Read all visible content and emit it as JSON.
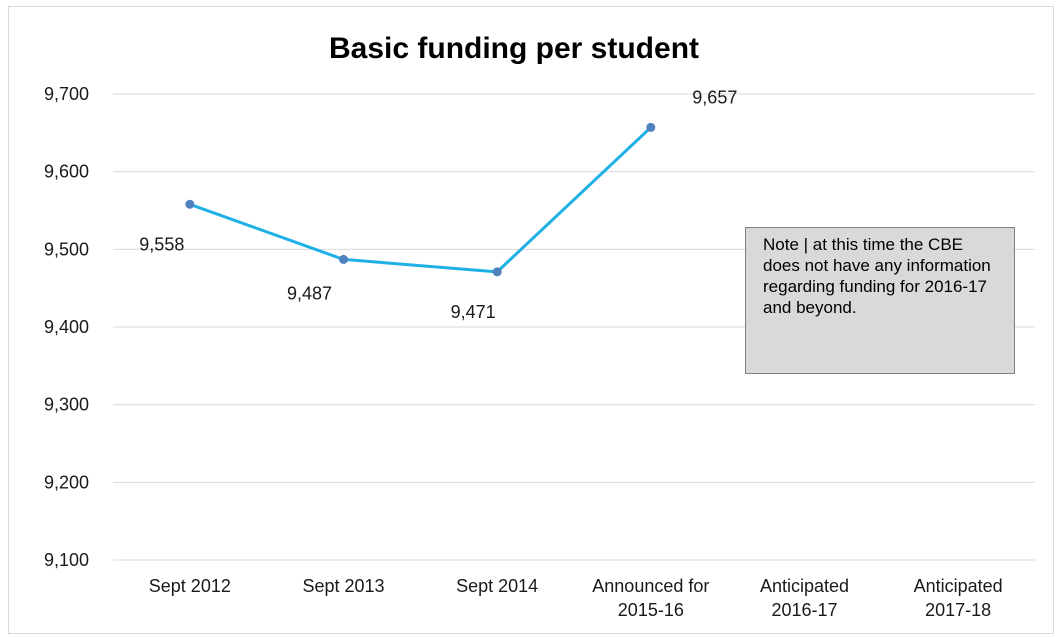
{
  "chart_data": {
    "type": "line",
    "title": "Basic funding per student",
    "categories": [
      [
        "Sept 2012"
      ],
      [
        "Sept 2013"
      ],
      [
        "Sept 2014"
      ],
      [
        "Announced for",
        "2015-16"
      ],
      [
        "Anticipated",
        "2016-17"
      ],
      [
        "Anticipated",
        "2017-18"
      ]
    ],
    "series": [
      {
        "values": [
          9558,
          9487,
          9471,
          9657,
          null,
          null
        ],
        "data_labels": [
          "9,558",
          "9,487",
          "9,471",
          "9,657",
          "",
          ""
        ],
        "color": "#1fb0e6",
        "marker_color": "#4f81bd"
      }
    ],
    "y_ticks": [
      "9,100",
      "9,200",
      "9,300",
      "9,400",
      "9,500",
      "9,600",
      "9,700"
    ],
    "ylim": [
      9100,
      9700
    ],
    "y_step": 100,
    "grid": true,
    "gridline_color": "#d9d9d9",
    "xlabel": "",
    "ylabel": ""
  },
  "note": {
    "text": "Note | at this time the CBE does not have any information regarding funding for 2016-17 and beyond."
  }
}
